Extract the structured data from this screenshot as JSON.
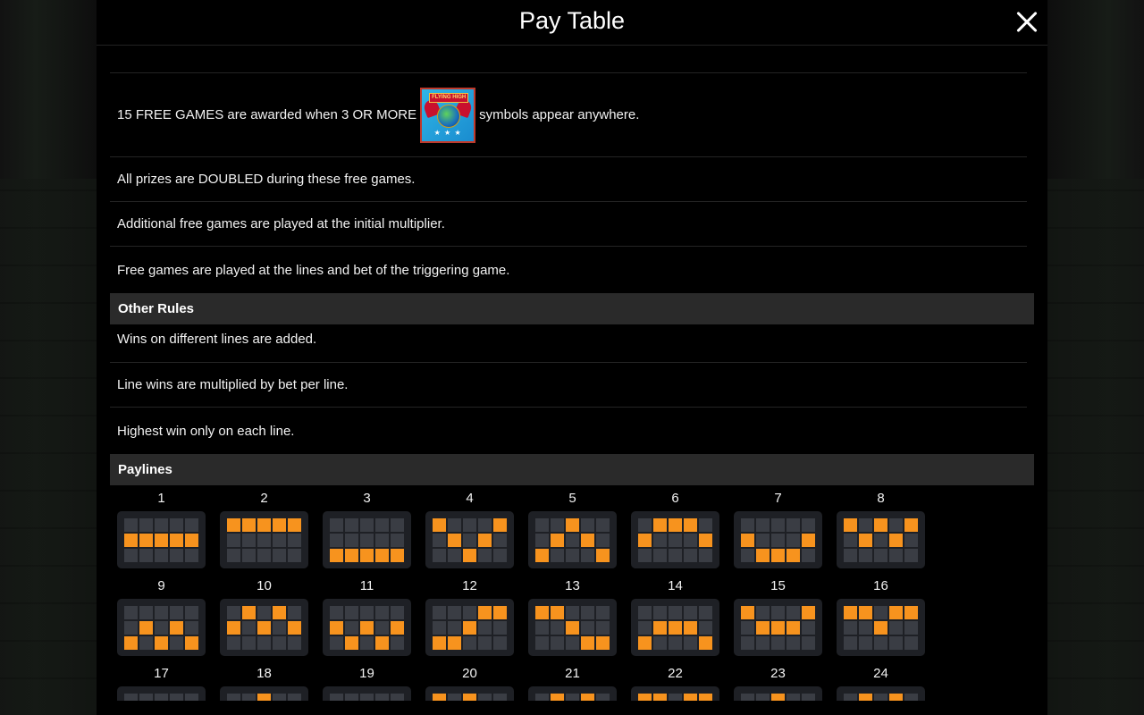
{
  "header": {
    "title": "Pay Table"
  },
  "free_games": {
    "line1_before": "15 FREE GAMES are awarded when 3 OR MORE",
    "line1_symbol": "FLYING HIGH",
    "line1_after": "symbols appear anywhere.",
    "rules": [
      "All prizes are DOUBLED during these free games.",
      "Additional free games are played at the initial multiplier.",
      "Free games are played at the lines and bet of the triggering game."
    ]
  },
  "other_rules": {
    "title": "Other Rules",
    "rules": [
      "Wins on different lines are added.",
      "Line wins are multiplied by bet per line.",
      "Highest win only on each line."
    ]
  },
  "paylines": {
    "title": "Paylines",
    "colors": {
      "on": "#f7931e",
      "off": "#3a3d44"
    },
    "lines": [
      {
        "num": "1",
        "rows": [
          1,
          1,
          1,
          1,
          1
        ]
      },
      {
        "num": "2",
        "rows": [
          0,
          0,
          0,
          0,
          0
        ]
      },
      {
        "num": "3",
        "rows": [
          2,
          2,
          2,
          2,
          2
        ]
      },
      {
        "num": "4",
        "rows": [
          0,
          1,
          2,
          1,
          0
        ]
      },
      {
        "num": "5",
        "rows": [
          2,
          1,
          0,
          1,
          2
        ]
      },
      {
        "num": "6",
        "rows": [
          1,
          0,
          0,
          0,
          1
        ]
      },
      {
        "num": "7",
        "rows": [
          1,
          2,
          2,
          2,
          1
        ]
      },
      {
        "num": "8",
        "rows": [
          0,
          1,
          0,
          1,
          0
        ]
      },
      {
        "num": "9",
        "rows": [
          2,
          1,
          2,
          1,
          2
        ]
      },
      {
        "num": "10",
        "rows": [
          1,
          0,
          1,
          0,
          1
        ]
      },
      {
        "num": "11",
        "rows": [
          1,
          2,
          1,
          2,
          1
        ]
      },
      {
        "num": "12",
        "rows": [
          2,
          2,
          1,
          0,
          0
        ]
      },
      {
        "num": "13",
        "rows": [
          0,
          0,
          1,
          2,
          2
        ]
      },
      {
        "num": "14",
        "rows": [
          2,
          1,
          1,
          1,
          2
        ]
      },
      {
        "num": "15",
        "rows": [
          0,
          1,
          1,
          1,
          0
        ]
      },
      {
        "num": "16",
        "rows": [
          0,
          0,
          1,
          0,
          0
        ]
      },
      {
        "num": "17",
        "rows": [
          1,
          1,
          1,
          1,
          1
        ]
      },
      {
        "num": "18",
        "rows": [
          1,
          1,
          0,
          1,
          1
        ]
      },
      {
        "num": "19",
        "rows": [
          1,
          1,
          1,
          1,
          1
        ]
      },
      {
        "num": "20",
        "rows": [
          0,
          1,
          0,
          1,
          1
        ]
      },
      {
        "num": "21",
        "rows": [
          1,
          0,
          1,
          0,
          1
        ]
      },
      {
        "num": "22",
        "rows": [
          0,
          0,
          1,
          0,
          0
        ]
      },
      {
        "num": "23",
        "rows": [
          1,
          1,
          0,
          1,
          1
        ]
      },
      {
        "num": "24",
        "rows": [
          1,
          0,
          1,
          0,
          1
        ]
      }
    ]
  }
}
